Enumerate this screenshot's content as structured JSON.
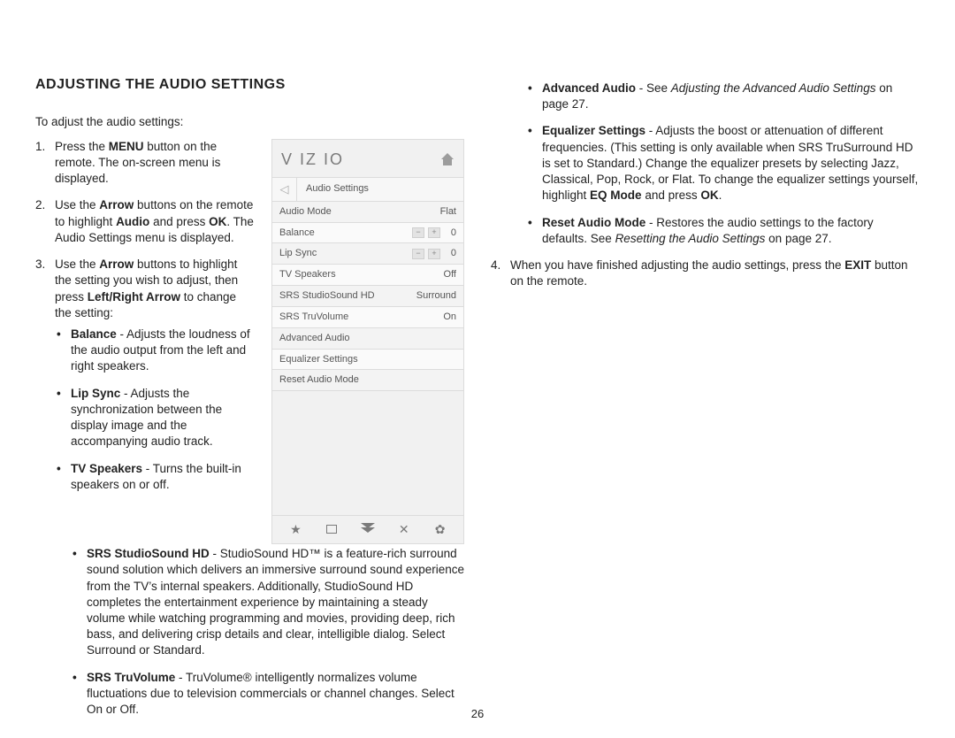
{
  "title": "ADJUSTING THE AUDIO SETTINGS",
  "intro": "To adjust the audio settings:",
  "steps": {
    "s1_a": "Press the ",
    "s1_b": "MENU",
    "s1_c": " button on the remote. The on-screen menu is displayed.",
    "s2_a": "Use the ",
    "s2_b": "Arrow",
    "s2_c": " buttons on the remote to highlight ",
    "s2_d": "Audio",
    "s2_e": " and press ",
    "s2_f": "OK",
    "s2_g": ". The Audio Settings menu is displayed.",
    "s3_a": "Use the ",
    "s3_b": "Arrow",
    "s3_c": " buttons to highlight the setting you wish to adjust, then press ",
    "s3_d": "Left/Right Arrow",
    "s3_e": " to change the setting:"
  },
  "bullets_left": {
    "balance_t": "Balance",
    "balance_d": " - Adjusts the loudness of the audio output from the left and right speakers.",
    "lip_t": "Lip Sync",
    "lip_d": " - Adjusts the synchronization between the display image and the accompanying audio track.",
    "tv_t": "TV Speakers",
    "tv_d": " - Turns the built-in speakers on or off.",
    "srs_t": "SRS StudioSound HD",
    "srs_d": " - StudioSound HD™ is a feature-rich surround sound solution which delivers an immersive surround sound experience from the TV’s internal speakers. Additionally, StudioSound HD completes the entertainment experience by maintaining a steady volume while watching programming and movies, providing deep, rich bass, and delivering crisp details and clear, intelligible dialog. Select Surround or Standard.",
    "tru_t": "SRS TruVolume",
    "tru_d": " - TruVolume® intelligently normalizes volume fluctuations due to television commercials or channel changes. Select On or Off."
  },
  "bullets_right": {
    "adv_t": "Advanced Audio",
    "adv_a": " - See ",
    "adv_i": "Adjusting the Advanced Audio Settings",
    "adv_b": " on page 27.",
    "eq_t": "Equalizer Settings",
    "eq_a": " - Adjusts the boost or attenuation of different frequencies. (This setting is only available when SRS TruSurround HD is set to Standard.) Change the equalizer presets by selecting Jazz, Classical, Pop, Rock, or Flat. To change the equalizer settings yourself, highlight ",
    "eq_b": "EQ Mode",
    "eq_c": " and press ",
    "eq_d": "OK",
    "eq_e": ".",
    "reset_t": "Reset Audio Mode",
    "reset_a": " - Restores the audio settings to the factory defaults. See ",
    "reset_i": "Resetting the Audio Settings",
    "reset_b": " on page 27."
  },
  "step4_a": "When you have finished adjusting the audio settings, press the ",
  "step4_b": "EXIT",
  "step4_c": " button on the remote.",
  "menu": {
    "logo": "V IZ IO",
    "title": "Audio Settings",
    "rows": [
      {
        "label": "Audio Mode",
        "value": "Flat"
      },
      {
        "label": "Balance",
        "slider": true,
        "value": "0"
      },
      {
        "label": "Lip Sync",
        "slider": true,
        "value": "0"
      },
      {
        "label": "TV Speakers",
        "value": "Off"
      },
      {
        "label": "SRS StudioSound HD",
        "value": "Surround"
      },
      {
        "label": "SRS TruVolume",
        "value": "On"
      },
      {
        "label": "Advanced Audio",
        "value": ""
      },
      {
        "label": "Equalizer Settings",
        "value": ""
      },
      {
        "label": "Reset Audio Mode",
        "value": ""
      }
    ]
  },
  "pagenum": "26"
}
